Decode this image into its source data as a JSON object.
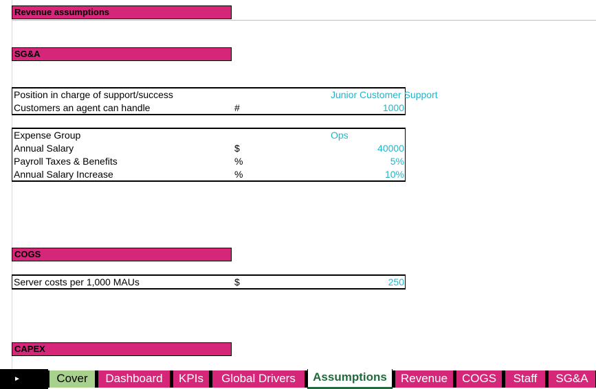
{
  "sections": {
    "revenue": "Revenue assumptions",
    "sga": "SG&A",
    "cogs": "COGS",
    "capex": "CAPEX"
  },
  "support": {
    "position_label": "Position in charge of support/success",
    "position_value": "Junior Customer Support",
    "customers_label": "Customers an agent can handle",
    "customers_unit": "#",
    "customers_value": "1000"
  },
  "expense": {
    "group_label": "Expense Group",
    "group_value": "Ops",
    "salary_label": "Annual Salary",
    "salary_unit": "$",
    "salary_value": "40000",
    "payroll_label": "Payroll Taxes & Benefits",
    "payroll_unit": "%",
    "payroll_value": "5%",
    "increase_label": "Annual Salary Increase",
    "increase_unit": "%",
    "increase_value": "10%"
  },
  "cogs": {
    "server_label": "Server costs per 1,000 MAUs",
    "server_unit": "$",
    "server_value": "250"
  },
  "tabs": [
    {
      "label": "Cover"
    },
    {
      "label": "Dashboard"
    },
    {
      "label": "KPIs"
    },
    {
      "label": "Global Drivers"
    },
    {
      "label": "Assumptions"
    },
    {
      "label": "Revenue"
    },
    {
      "label": "COGS"
    },
    {
      "label": "Staff"
    },
    {
      "label": "SG&A"
    }
  ],
  "colors": {
    "section_fill": "#d6267a",
    "value_text": "#22b5c9",
    "cover_tab": "#a9d18e",
    "active_tab_text": "#1f6b3b"
  }
}
